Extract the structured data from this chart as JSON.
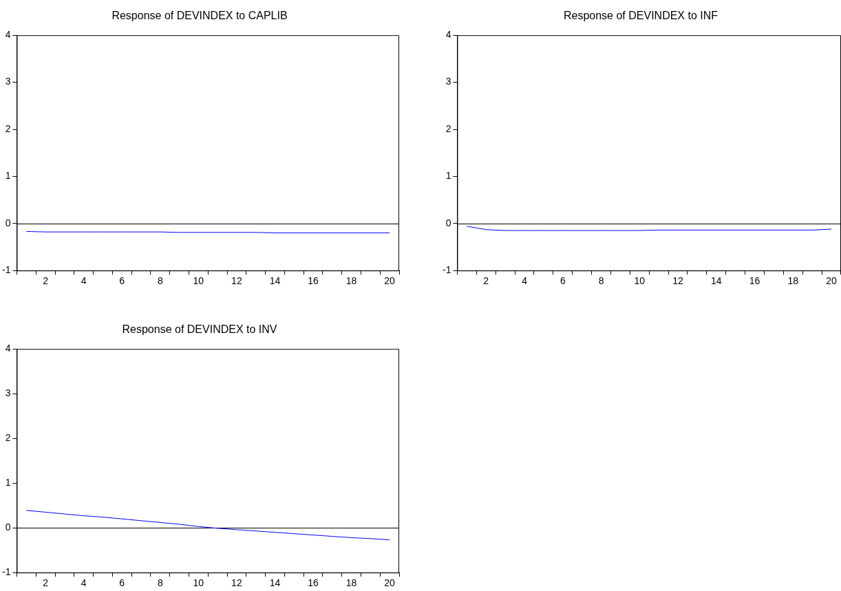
{
  "chart_data": [
    {
      "type": "line",
      "title": "Response of DEVINDEX to CAPLIB",
      "categories": [
        null,
        "2",
        null,
        "4",
        null,
        "6",
        null,
        "8",
        null,
        "10",
        null,
        "12",
        null,
        "14",
        null,
        "16",
        null,
        "18",
        null,
        "20"
      ],
      "series": [
        {
          "color": "#0000ff",
          "values": [
            -0.17,
            -0.18,
            -0.18,
            -0.18,
            -0.18,
            -0.18,
            -0.18,
            -0.18,
            -0.19,
            -0.19,
            -0.19,
            -0.19,
            -0.19,
            -0.2,
            -0.2,
            -0.2,
            -0.2,
            -0.2,
            -0.2,
            -0.2
          ]
        }
      ],
      "ylim": [
        -1,
        4
      ],
      "yticks": [
        -1,
        0,
        1,
        2,
        3,
        4
      ],
      "ref_lines": [
        {
          "axis": "y",
          "value": 0,
          "color": "#000000"
        }
      ],
      "grid": false,
      "legend": false,
      "marker": "none",
      "line_style": "solid"
    },
    {
      "type": "line",
      "title": "Response of DEVINDEX to INF",
      "categories": [
        null,
        "2",
        null,
        "4",
        null,
        "6",
        null,
        "8",
        null,
        "10",
        null,
        "12",
        null,
        "14",
        null,
        "16",
        null,
        "18",
        null,
        "20"
      ],
      "series": [
        {
          "color": "#0000ff",
          "values": [
            -0.06,
            -0.13,
            -0.15,
            -0.15,
            -0.15,
            -0.15,
            -0.15,
            -0.15,
            -0.15,
            -0.15,
            -0.14,
            -0.14,
            -0.14,
            -0.14,
            -0.14,
            -0.14,
            -0.14,
            -0.14,
            -0.14,
            -0.12
          ]
        }
      ],
      "ylim": [
        -1,
        4
      ],
      "yticks": [
        -1,
        0,
        1,
        2,
        3,
        4
      ],
      "ref_lines": [
        {
          "axis": "y",
          "value": 0,
          "color": "#000000"
        }
      ],
      "grid": false,
      "legend": false,
      "marker": "none",
      "line_style": "solid"
    },
    {
      "type": "line",
      "title": "Response of DEVINDEX to INV",
      "categories": [
        null,
        "2",
        null,
        "4",
        null,
        "6",
        null,
        "8",
        null,
        "10",
        null,
        "12",
        null,
        "14",
        null,
        "16",
        null,
        "18",
        null,
        "20"
      ],
      "series": [
        {
          "color": "#0000ff",
          "values": [
            0.39,
            0.35,
            0.31,
            0.27,
            0.24,
            0.2,
            0.16,
            0.12,
            0.08,
            0.03,
            -0.01,
            -0.04,
            -0.07,
            -0.1,
            -0.13,
            -0.16,
            -0.19,
            -0.22,
            -0.24,
            -0.27
          ]
        }
      ],
      "ylim": [
        -1,
        4
      ],
      "yticks": [
        -1,
        0,
        1,
        2,
        3,
        4
      ],
      "ref_lines": [
        {
          "axis": "y",
          "value": 0,
          "color": "#000000"
        }
      ],
      "grid": false,
      "legend": false,
      "marker": "none",
      "line_style": "solid"
    }
  ]
}
